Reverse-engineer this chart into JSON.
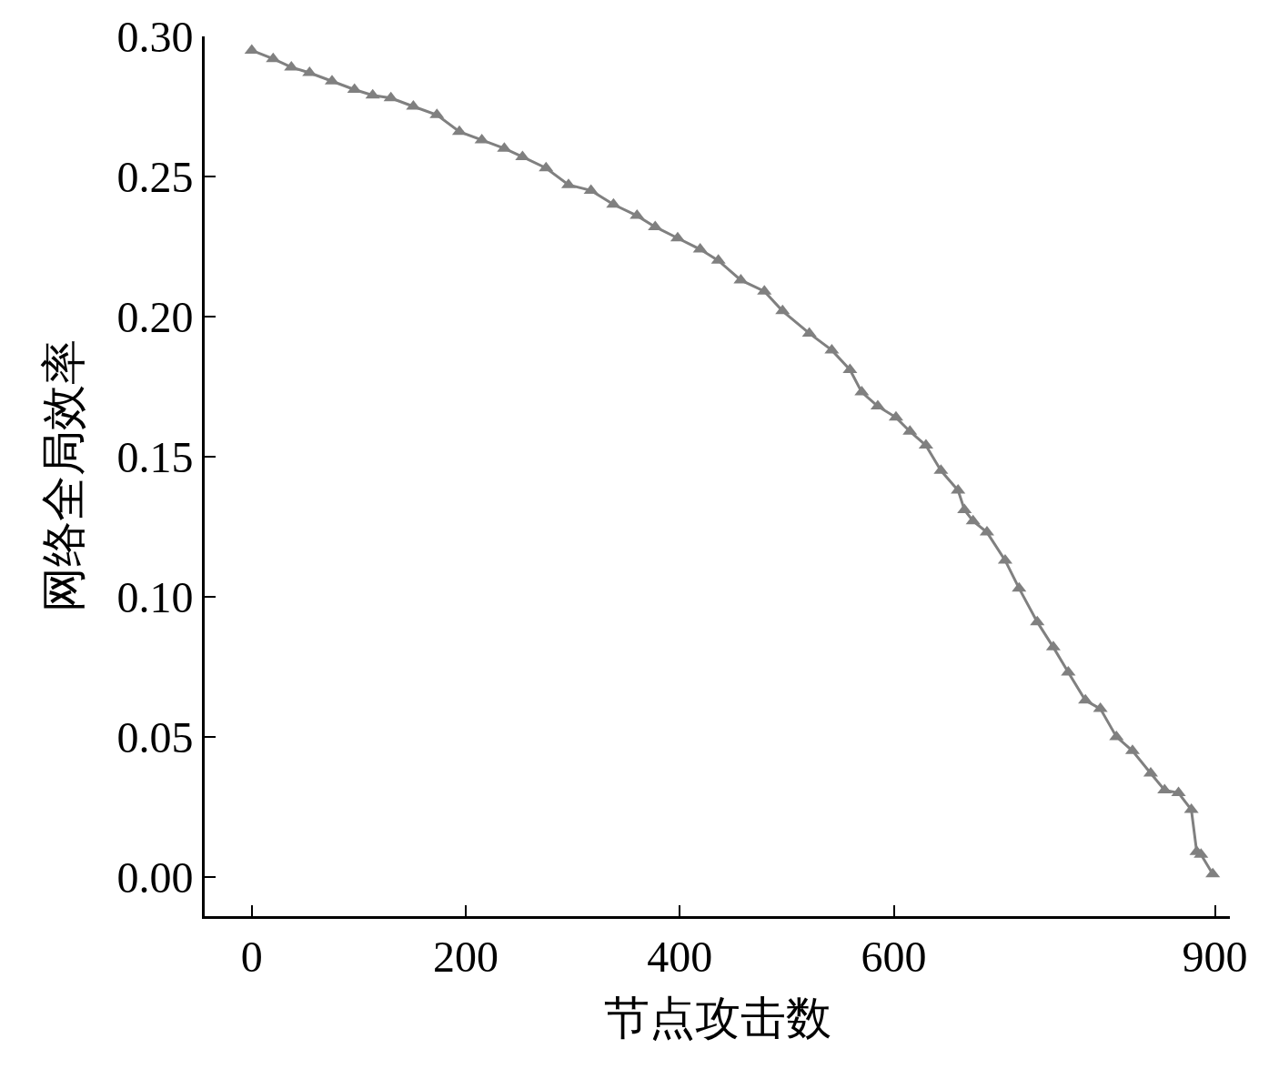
{
  "chart_data": {
    "type": "line",
    "xlabel": "节点攻击数",
    "ylabel": "网络全局效率",
    "xlim": [
      -44,
      914
    ],
    "ylim": [
      -0.014,
      0.3
    ],
    "xticks": [
      0,
      200,
      400,
      600,
      900
    ],
    "yticks": [
      {
        "value": 0,
        "label": "0.00"
      },
      {
        "value": 0.05,
        "label": "0.05"
      },
      {
        "value": 0.1,
        "label": "0.10"
      },
      {
        "value": 0.15,
        "label": "0.15"
      },
      {
        "value": 0.2,
        "label": "0.20"
      },
      {
        "value": 0.25,
        "label": "0.25"
      },
      {
        "value": 0.3,
        "label": "0.30"
      }
    ],
    "marker": "triangle",
    "line_style": "solid",
    "series": [
      {
        "color": "#808080",
        "x": [
          0,
          20,
          37,
          54,
          75,
          96,
          113,
          130,
          151,
          173,
          194,
          215,
          236,
          253,
          275,
          296,
          317,
          338,
          360,
          377,
          398,
          419,
          436,
          457,
          479,
          496,
          521,
          542,
          559,
          570,
          585,
          602,
          615,
          630,
          644,
          660,
          666,
          674,
          687,
          704,
          717,
          734,
          749,
          763,
          779,
          793,
          808,
          823,
          840,
          853,
          866,
          878,
          883,
          887,
          898
        ],
        "values": [
          0.295,
          0.292,
          0.289,
          0.287,
          0.284,
          0.281,
          0.279,
          0.278,
          0.275,
          0.272,
          0.266,
          0.263,
          0.26,
          0.257,
          0.253,
          0.247,
          0.245,
          0.24,
          0.236,
          0.232,
          0.228,
          0.224,
          0.22,
          0.213,
          0.209,
          0.202,
          0.194,
          0.188,
          0.181,
          0.173,
          0.168,
          0.164,
          0.159,
          0.154,
          0.145,
          0.138,
          0.131,
          0.127,
          0.123,
          0.113,
          0.103,
          0.091,
          0.082,
          0.073,
          0.063,
          0.06,
          0.05,
          0.045,
          0.037,
          0.031,
          0.03,
          0.024,
          0.009,
          0.008,
          0.001
        ]
      }
    ]
  }
}
